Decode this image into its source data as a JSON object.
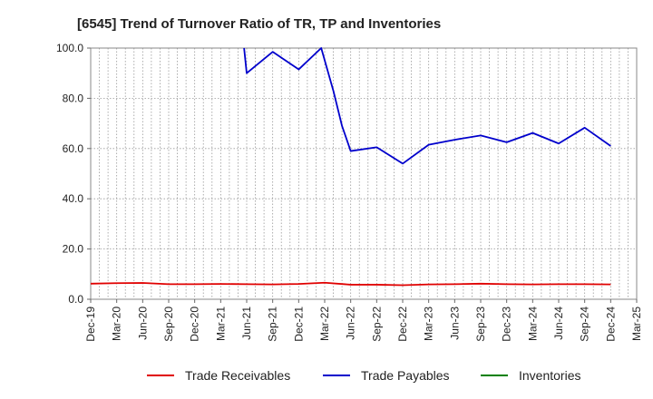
{
  "chart_data": {
    "type": "line",
    "title": "[6545]  Trend of Turnover Ratio of TR, TP and Inventories",
    "xlabel": "",
    "ylabel": "",
    "ylim": [
      0,
      100
    ],
    "yticks": [
      "0.0",
      "20.0",
      "40.0",
      "60.0",
      "80.0",
      "100.0"
    ],
    "ytick_values": [
      0,
      20,
      40,
      60,
      80,
      100
    ],
    "grid": true,
    "legend_position": "bottom",
    "categories": [
      "Dec-19",
      "Jan-20",
      "Feb-20",
      "Mar-20",
      "Apr-20",
      "May-20",
      "Jun-20",
      "Jul-20",
      "Aug-20",
      "Sep-20",
      "Oct-20",
      "Nov-20",
      "Dec-20",
      "Jan-21",
      "Feb-21",
      "Mar-21",
      "Apr-21",
      "May-21",
      "Jun-21",
      "Jul-21",
      "Aug-21",
      "Sep-21",
      "Oct-21",
      "Nov-21",
      "Dec-21",
      "Jan-22",
      "Feb-22",
      "Mar-22",
      "Apr-22",
      "May-22",
      "Jun-22",
      "Jul-22",
      "Aug-22",
      "Sep-22",
      "Oct-22",
      "Nov-22",
      "Dec-22",
      "Jan-23",
      "Feb-23",
      "Mar-23",
      "Apr-23",
      "May-23",
      "Jun-23",
      "Jul-23",
      "Aug-23",
      "Sep-23",
      "Oct-23",
      "Nov-23",
      "Dec-23",
      "Jan-24",
      "Feb-24",
      "Mar-24",
      "Apr-24",
      "May-24",
      "Jun-24",
      "Jul-24",
      "Aug-24",
      "Sep-24",
      "Oct-24",
      "Nov-24",
      "Dec-24",
      "Jan-25",
      "Feb-25",
      "Mar-25"
    ],
    "x_tick_labels": [
      "Dec-19",
      "Mar-20",
      "Jun-20",
      "Sep-20",
      "Dec-20",
      "Mar-21",
      "Jun-21",
      "Sep-21",
      "Dec-21",
      "Mar-22",
      "Jun-22",
      "Sep-22",
      "Dec-22",
      "Mar-23",
      "Jun-23",
      "Sep-23",
      "Dec-23",
      "Mar-24",
      "Jun-24",
      "Sep-24",
      "Dec-24",
      "Mar-25"
    ],
    "series": [
      {
        "name": "Trade Receivables",
        "color": "#e00000",
        "points": [
          [
            0,
            6.2
          ],
          [
            3,
            6.4
          ],
          [
            6,
            6.5
          ],
          [
            9,
            6.0
          ],
          [
            12,
            6.0
          ],
          [
            15,
            6.1
          ],
          [
            18,
            6.0
          ],
          [
            21,
            5.9
          ],
          [
            24,
            6.1
          ],
          [
            27,
            6.6
          ],
          [
            30,
            5.8
          ],
          [
            33,
            5.8
          ],
          [
            36,
            5.6
          ],
          [
            39,
            5.9
          ],
          [
            42,
            6.0
          ],
          [
            45,
            6.2
          ],
          [
            48,
            6.0
          ],
          [
            51,
            5.9
          ],
          [
            54,
            6.0
          ],
          [
            57,
            6.0
          ],
          [
            60,
            5.9
          ]
        ]
      },
      {
        "name": "Trade Payables",
        "color": "#0000cc",
        "points": [
          [
            17.7,
            100
          ],
          [
            18,
            90
          ],
          [
            21,
            98.5
          ],
          [
            24,
            91.5
          ],
          [
            26.6,
            100
          ],
          [
            28,
            83
          ],
          [
            29,
            69
          ],
          [
            30,
            59
          ],
          [
            33,
            60.5
          ],
          [
            36,
            54
          ],
          [
            39,
            61.5
          ],
          [
            42,
            63.5
          ],
          [
            45,
            65.2
          ],
          [
            48,
            62.5
          ],
          [
            51,
            66.2
          ],
          [
            54,
            62
          ],
          [
            57,
            68.3
          ],
          [
            60,
            61
          ]
        ]
      },
      {
        "name": "Inventories",
        "color": "#008000",
        "points": []
      }
    ]
  }
}
